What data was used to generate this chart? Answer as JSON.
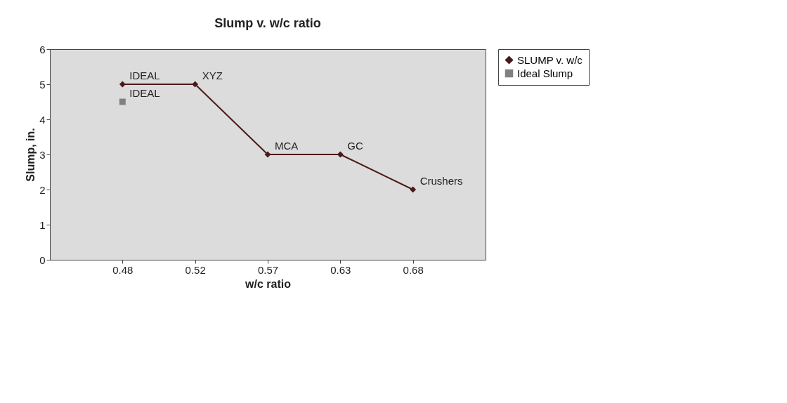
{
  "chart_data": {
    "type": "line",
    "title": "Slump v. w/c ratio",
    "xlabel": "w/c ratio",
    "ylabel": "Slump, in.",
    "categories": [
      "0.48",
      "0.52",
      "0.57",
      "0.63",
      "0.68"
    ],
    "series": [
      {
        "name": "SLUMP v. w/c",
        "color": "#4a1a1a",
        "marker": "diamond",
        "values": [
          5,
          5,
          3,
          3,
          2
        ]
      },
      {
        "name": "Ideal Slump",
        "color": "#808080",
        "marker": "square",
        "values": [
          4.5,
          null,
          null,
          null,
          null
        ]
      }
    ],
    "ylim": [
      0,
      6
    ],
    "yticks": [
      0,
      1,
      2,
      3,
      4,
      5,
      6
    ],
    "grid": false,
    "legend": "right",
    "annotations": [
      {
        "text": "IDEAL",
        "x": "0.48",
        "y": 5
      },
      {
        "text": "XYZ",
        "x": "0.52",
        "y": 5
      },
      {
        "text": "MCA",
        "x": "0.57",
        "y": 3
      },
      {
        "text": "GC",
        "x": "0.63",
        "y": 3
      },
      {
        "text": "Crushers",
        "x": "0.68",
        "y": 2
      },
      {
        "text": "IDEAL",
        "x": "0.48",
        "y": 4.5
      }
    ]
  }
}
